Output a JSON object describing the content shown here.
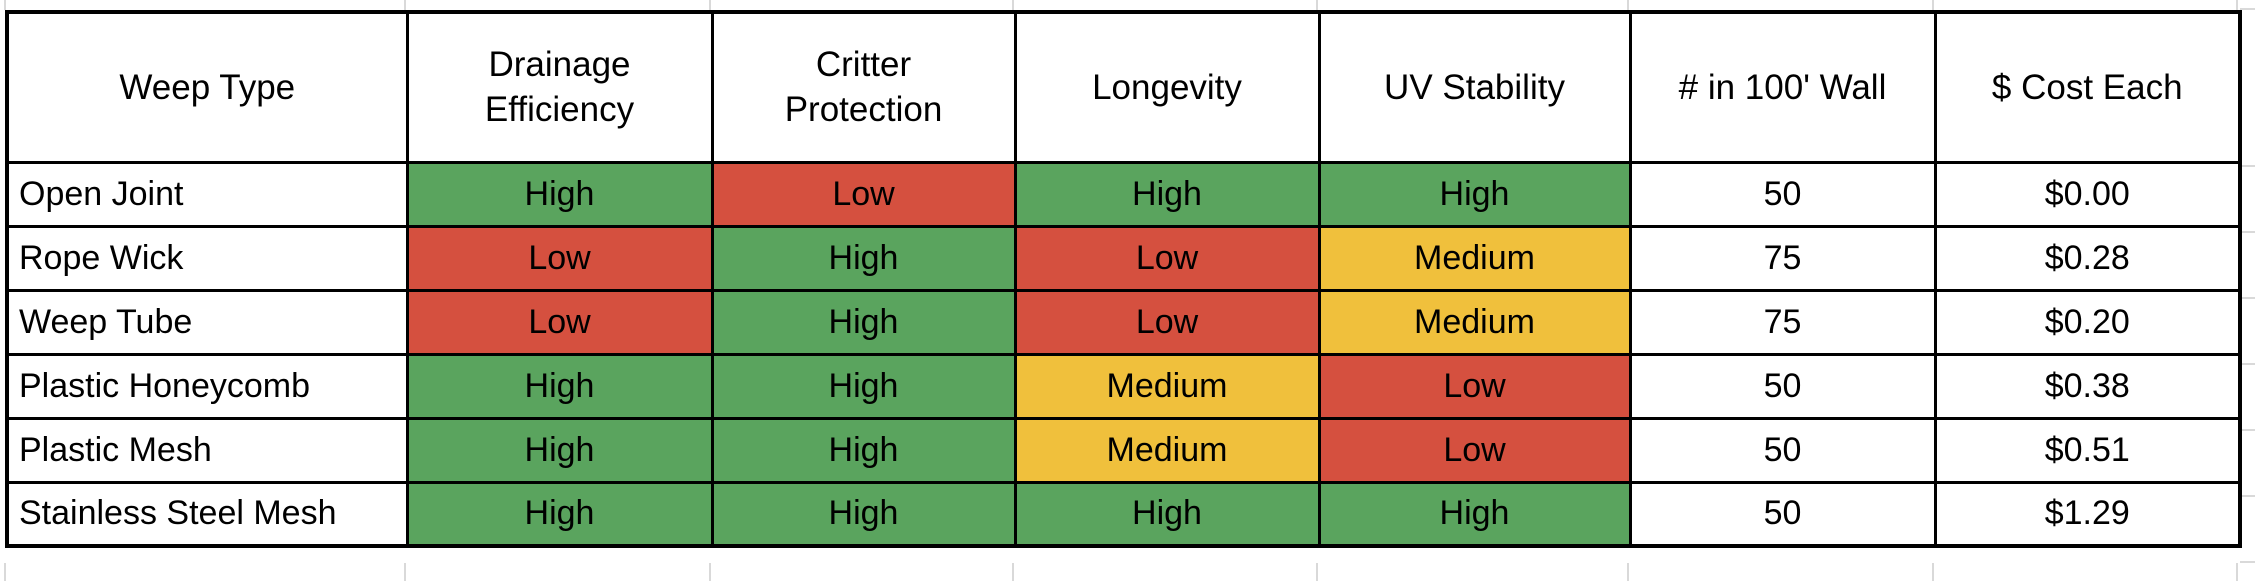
{
  "chart_data": {
    "type": "table",
    "columns": [
      {
        "key": "weep_type",
        "label": "Weep Type",
        "kind": "text"
      },
      {
        "key": "drainage_efficiency",
        "label": "Drainage Efficiency",
        "kind": "rating"
      },
      {
        "key": "critter_protection",
        "label": "Critter Protection",
        "kind": "rating"
      },
      {
        "key": "longevity",
        "label": "Longevity",
        "kind": "rating"
      },
      {
        "key": "uv_stability",
        "label": "UV Stability",
        "kind": "rating"
      },
      {
        "key": "num_in_100ft_wall",
        "label": "# in 100' Wall",
        "kind": "number"
      },
      {
        "key": "cost_each",
        "label": "$ Cost Each",
        "kind": "currency"
      }
    ],
    "rows": [
      {
        "weep_type": "Open Joint",
        "drainage_efficiency": "High",
        "critter_protection": "Low",
        "longevity": "High",
        "uv_stability": "High",
        "num_in_100ft_wall": "50",
        "cost_each": "$0.00"
      },
      {
        "weep_type": "Rope Wick",
        "drainage_efficiency": "Low",
        "critter_protection": "High",
        "longevity": "Low",
        "uv_stability": "Medium",
        "num_in_100ft_wall": "75",
        "cost_each": "$0.28"
      },
      {
        "weep_type": "Weep Tube",
        "drainage_efficiency": "Low",
        "critter_protection": "High",
        "longevity": "Low",
        "uv_stability": "Medium",
        "num_in_100ft_wall": "75",
        "cost_each": "$0.20"
      },
      {
        "weep_type": "Plastic Honeycomb",
        "drainage_efficiency": "High",
        "critter_protection": "High",
        "longevity": "Medium",
        "uv_stability": "Low",
        "num_in_100ft_wall": "50",
        "cost_each": "$0.38"
      },
      {
        "weep_type": "Plastic Mesh",
        "drainage_efficiency": "High",
        "critter_protection": "High",
        "longevity": "Medium",
        "uv_stability": "Low",
        "num_in_100ft_wall": "50",
        "cost_each": "$0.51"
      },
      {
        "weep_type": "Stainless Steel Mesh",
        "drainage_efficiency": "High",
        "critter_protection": "High",
        "longevity": "High",
        "uv_stability": "High",
        "num_in_100ft_wall": "50",
        "cost_each": "$1.29"
      }
    ]
  },
  "rating_colors": {
    "High": "#5AA45E",
    "Medium": "#F0C03C",
    "Low": "#D5503F"
  },
  "style_colors": {
    "table_border": "#000000",
    "gridline": "#D9D9D9",
    "background": "#FFFFFF",
    "text": "#000000"
  }
}
